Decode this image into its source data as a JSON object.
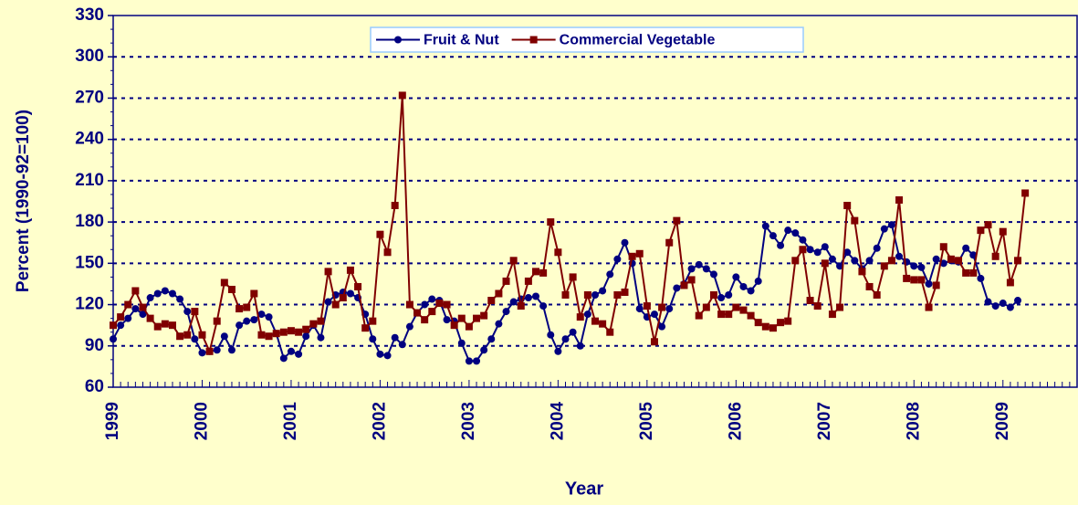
{
  "chart_data": {
    "type": "line",
    "x_label": "Year",
    "y_label": "Percent (1990-92=100)",
    "categories": [
      "1999",
      null,
      null,
      null,
      null,
      null,
      null,
      null,
      null,
      null,
      null,
      null,
      "2000",
      null,
      null,
      null,
      null,
      null,
      null,
      null,
      null,
      null,
      null,
      null,
      "2001",
      null,
      null,
      null,
      null,
      null,
      null,
      null,
      null,
      null,
      null,
      null,
      "2002",
      null,
      null,
      null,
      null,
      null,
      null,
      null,
      null,
      null,
      null,
      null,
      "2003",
      null,
      null,
      null,
      null,
      null,
      null,
      null,
      null,
      null,
      null,
      null,
      "2004",
      null,
      null,
      null,
      null,
      null,
      null,
      null,
      null,
      null,
      null,
      null,
      "2005",
      null,
      null,
      null,
      null,
      null,
      null,
      null,
      null,
      null,
      null,
      null,
      "2006",
      null,
      null,
      null,
      null,
      null,
      null,
      null,
      null,
      null,
      null,
      null,
      "2007",
      null,
      null,
      null,
      null,
      null,
      null,
      null,
      null,
      null,
      null,
      null,
      "2008",
      null,
      null,
      null,
      null,
      null,
      null,
      null,
      null,
      null,
      null,
      null,
      "2009",
      null,
      null,
      null,
      null,
      null,
      null,
      null,
      null,
      null,
      null,
      null
    ],
    "series": [
      {
        "name": "Fruit & Nut",
        "color": "#000080",
        "marker": "circle",
        "values": [
          95,
          105,
          110,
          117,
          113,
          125,
          128,
          130,
          128,
          124,
          115,
          95,
          85,
          86,
          87,
          97,
          87,
          105,
          108,
          109,
          113,
          111,
          99,
          81,
          86,
          84,
          97,
          105,
          96,
          122,
          127,
          129,
          128,
          125,
          113,
          95,
          84,
          83,
          96,
          91,
          104,
          114,
          120,
          124,
          123,
          109,
          108,
          92,
          79,
          79,
          87,
          95,
          106,
          115,
          122,
          124,
          125,
          126,
          119,
          98,
          86,
          95,
          100,
          90,
          113,
          127,
          130,
          142,
          153,
          165,
          150,
          117,
          111,
          113,
          104,
          117,
          132,
          135,
          146,
          149,
          146,
          142,
          125,
          127,
          140,
          133,
          130,
          137,
          177,
          170,
          163,
          174,
          172,
          167,
          160,
          158,
          162,
          153,
          148,
          158,
          152,
          146,
          152,
          161,
          175,
          178,
          155,
          151,
          148,
          147,
          135,
          153,
          150,
          152,
          151,
          161,
          156,
          139,
          122,
          119,
          121,
          118,
          123,
          null,
          null,
          null,
          null,
          null,
          null,
          null,
          null,
          null
        ]
      },
      {
        "name": "Commercial Vegetable",
        "color": "#800000",
        "marker": "square",
        "values": [
          105,
          111,
          120,
          130,
          118,
          110,
          104,
          106,
          105,
          97,
          98,
          115,
          98,
          86,
          108,
          136,
          131,
          117,
          118,
          128,
          98,
          97,
          99,
          100,
          101,
          100,
          102,
          106,
          108,
          144,
          120,
          125,
          145,
          133,
          103,
          108,
          171,
          158,
          192,
          272,
          120,
          114,
          109,
          115,
          121,
          120,
          105,
          110,
          104,
          110,
          112,
          123,
          128,
          137,
          152,
          119,
          137,
          144,
          143,
          180,
          158,
          127,
          140,
          111,
          127,
          108,
          106,
          100,
          127,
          129,
          155,
          157,
          119,
          93,
          118,
          165,
          181,
          134,
          138,
          112,
          118,
          127,
          113,
          113,
          118,
          116,
          112,
          107,
          104,
          103,
          107,
          108,
          152,
          160,
          123,
          119,
          150,
          113,
          118,
          192,
          181,
          144,
          133,
          127,
          148,
          152,
          196,
          139,
          138,
          138,
          118,
          134,
          162,
          153,
          152,
          143,
          143,
          174,
          178,
          155,
          173,
          136,
          152,
          201,
          null,
          null,
          null,
          null,
          null,
          null,
          null,
          null
        ]
      }
    ],
    "ylim": [
      60,
      330
    ],
    "yticks": [
      60,
      90,
      120,
      150,
      180,
      210,
      240,
      270,
      300,
      330
    ],
    "grid": true,
    "legend": "top"
  }
}
